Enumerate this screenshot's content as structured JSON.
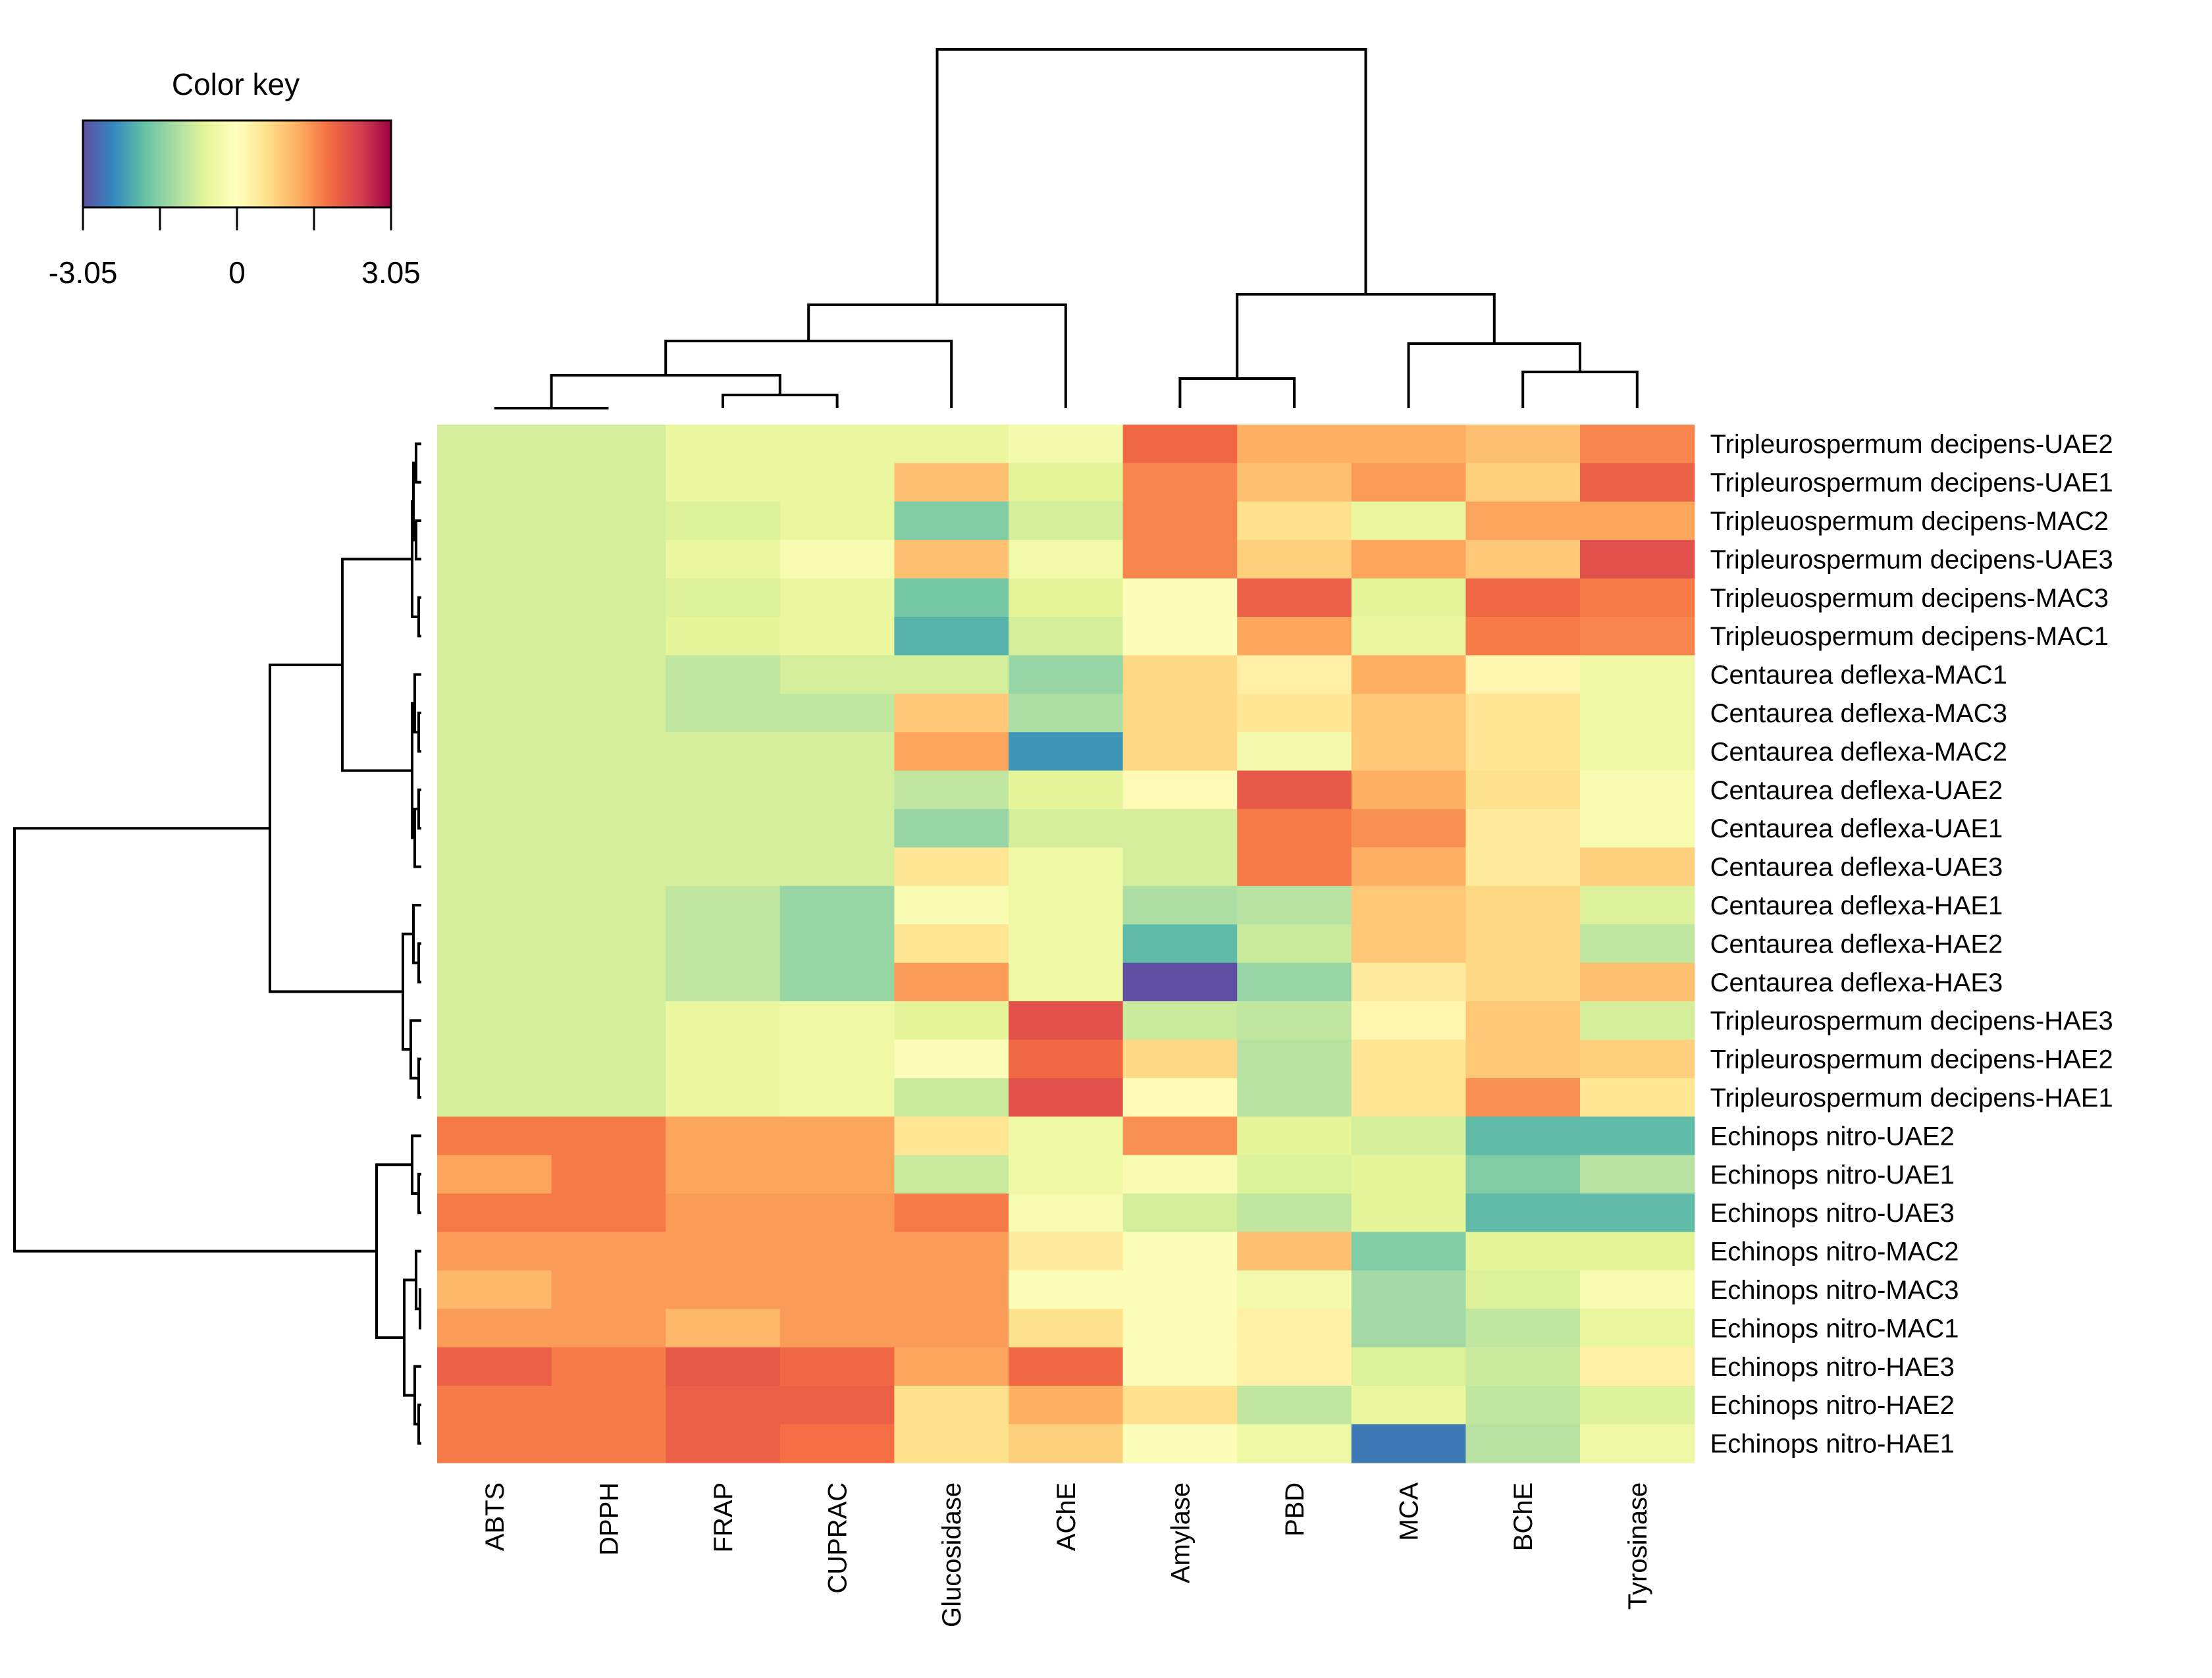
{
  "chart_data": {
    "type": "heatmap",
    "title": "",
    "color_key": {
      "title": "Color key",
      "min": -3.05,
      "max": 3.05,
      "tick_labels": [
        "-3.05",
        "0",
        "3.05"
      ],
      "colors": [
        "#5e4fa2",
        "#3288bd",
        "#66c2a5",
        "#abdda4",
        "#e6f598",
        "#ffffbf",
        "#fee08b",
        "#fdae61",
        "#f46d43",
        "#d53e4f",
        "#9e0142"
      ]
    },
    "columns": [
      "ABTS",
      "DPPH",
      "FRAP",
      "CUPRAC",
      "Glucosidase",
      "AChE",
      "Amylase",
      "PBD",
      "MCA",
      "BChE",
      "Tyrosinase"
    ],
    "rows": [
      "Tripleurospermum decipens-UAE2",
      "Tripleurospermum decipens-UAE1",
      "Tripleuospermum decipens-MAC2",
      "Tripleurospermum decipens-UAE3",
      "Tripleuospermum decipens-MAC3",
      "Tripleuospermum decipens-MAC1",
      "Centaurea deflexa-MAC1",
      "Centaurea deflexa-MAC3",
      "Centaurea deflexa-MAC2",
      "Centaurea deflexa-UAE2",
      "Centaurea deflexa-UAE1",
      "Centaurea deflexa-UAE3",
      "Centaurea deflexa-HAE1",
      "Centaurea deflexa-HAE2",
      "Centaurea deflexa-HAE3",
      "Tripleurospermum decipens-HAE3",
      "Tripleurospermum decipens-HAE2",
      "Tripleurospermum decipens-HAE1",
      "Echinops nitro-UAE2",
      "Echinops nitro-UAE1",
      "Echinops nitro-UAE3",
      "Echinops nitro-MAC2",
      "Echinops nitro-MAC3",
      "Echinops nitro-MAC1",
      "Echinops nitro-HAE3",
      "Echinops nitro-HAE2",
      "Echinops nitro-HAE1"
    ],
    "values": [
      [
        -0.8,
        -0.8,
        -0.5,
        -0.5,
        -0.5,
        -0.3,
        1.9,
        1.2,
        1.2,
        1.0,
        1.6
      ],
      [
        -0.8,
        -0.8,
        -0.5,
        -0.5,
        1.0,
        -0.6,
        1.6,
        1.0,
        1.4,
        0.8,
        2.0
      ],
      [
        -0.8,
        -0.8,
        -0.7,
        -0.5,
        -1.6,
        -0.8,
        1.6,
        0.6,
        -0.5,
        1.3,
        1.3
      ],
      [
        -0.8,
        -0.8,
        -0.5,
        -0.2,
        1.0,
        -0.3,
        1.6,
        0.8,
        1.3,
        0.9,
        2.2
      ],
      [
        -0.8,
        -0.8,
        -0.7,
        -0.5,
        -1.7,
        -0.6,
        -0.1,
        2.0,
        -0.6,
        1.9,
        1.7
      ],
      [
        -0.8,
        -0.8,
        -0.6,
        -0.5,
        -2.0,
        -0.8,
        -0.1,
        1.3,
        -0.5,
        1.7,
        1.6
      ],
      [
        -0.8,
        -0.8,
        -1.0,
        -0.8,
        -0.8,
        -1.4,
        0.7,
        0.3,
        1.2,
        0.2,
        -0.4
      ],
      [
        -0.8,
        -0.8,
        -1.0,
        -1.0,
        0.9,
        -1.2,
        0.7,
        0.5,
        0.9,
        0.5,
        -0.4
      ],
      [
        -0.8,
        -0.8,
        -0.8,
        -0.8,
        1.3,
        -2.3,
        0.7,
        -0.3,
        0.9,
        0.5,
        -0.4
      ],
      [
        -0.8,
        -0.8,
        -0.8,
        -0.8,
        -1.0,
        -0.6,
        0.1,
        2.1,
        1.2,
        0.6,
        -0.2
      ],
      [
        -0.8,
        -0.8,
        -0.8,
        -0.8,
        -1.4,
        -0.8,
        -0.8,
        1.7,
        1.5,
        0.4,
        -0.2
      ],
      [
        -0.8,
        -0.8,
        -0.8,
        -0.8,
        0.5,
        -0.4,
        -0.8,
        1.7,
        1.2,
        0.4,
        0.8
      ],
      [
        -0.8,
        -0.8,
        -1.0,
        -1.4,
        -0.2,
        -0.4,
        -1.2,
        -1.1,
        0.9,
        0.7,
        -0.7
      ],
      [
        -0.8,
        -0.8,
        -1.0,
        -1.4,
        0.5,
        -0.4,
        -1.9,
        -0.9,
        0.9,
        0.7,
        -1.0
      ],
      [
        -0.8,
        -0.8,
        -1.0,
        -1.4,
        1.4,
        -0.4,
        -3.05,
        -1.4,
        0.4,
        0.7,
        1.0
      ],
      [
        -0.8,
        -0.8,
        -0.5,
        -0.4,
        -0.6,
        2.2,
        -0.9,
        -1.0,
        0.2,
        0.9,
        -0.8
      ],
      [
        -0.8,
        -0.8,
        -0.5,
        -0.4,
        -0.1,
        1.9,
        0.7,
        -1.1,
        0.5,
        0.9,
        0.8
      ],
      [
        -0.8,
        -0.8,
        -0.5,
        -0.4,
        -0.9,
        2.2,
        0.1,
        -1.1,
        0.5,
        1.5,
        0.5
      ],
      [
        1.7,
        1.7,
        1.3,
        1.3,
        0.5,
        -0.4,
        1.5,
        -0.6,
        -0.8,
        -1.9,
        -1.9
      ],
      [
        1.3,
        1.7,
        1.3,
        1.3,
        -0.9,
        -0.4,
        -0.2,
        -0.7,
        -0.6,
        -1.6,
        -1.1
      ],
      [
        1.7,
        1.7,
        1.4,
        1.4,
        1.7,
        -0.2,
        -0.8,
        -1.0,
        -0.6,
        -1.9,
        -1.9
      ],
      [
        1.4,
        1.4,
        1.4,
        1.4,
        1.4,
        0.4,
        -0.1,
        1.0,
        -1.6,
        -0.6,
        -0.6
      ],
      [
        1.1,
        1.4,
        1.4,
        1.4,
        1.4,
        -0.1,
        -0.1,
        -0.3,
        -1.3,
        -0.7,
        -0.2
      ],
      [
        1.4,
        1.4,
        1.1,
        1.4,
        1.4,
        0.6,
        -0.1,
        0.3,
        -1.3,
        -1.0,
        -0.5
      ],
      [
        2.0,
        1.7,
        2.1,
        1.9,
        1.3,
        1.9,
        -0.1,
        0.3,
        -0.7,
        -0.9,
        0.3
      ],
      [
        1.7,
        1.7,
        2.0,
        2.0,
        0.6,
        1.2,
        0.6,
        -1.0,
        -0.5,
        -1.0,
        -0.7
      ],
      [
        1.7,
        1.7,
        2.0,
        1.8,
        0.6,
        0.8,
        -0.1,
        -0.4,
        -2.6,
        -1.1,
        -0.4
      ]
    ],
    "xlabel": "",
    "ylabel": "",
    "legend_position": "top-left"
  }
}
